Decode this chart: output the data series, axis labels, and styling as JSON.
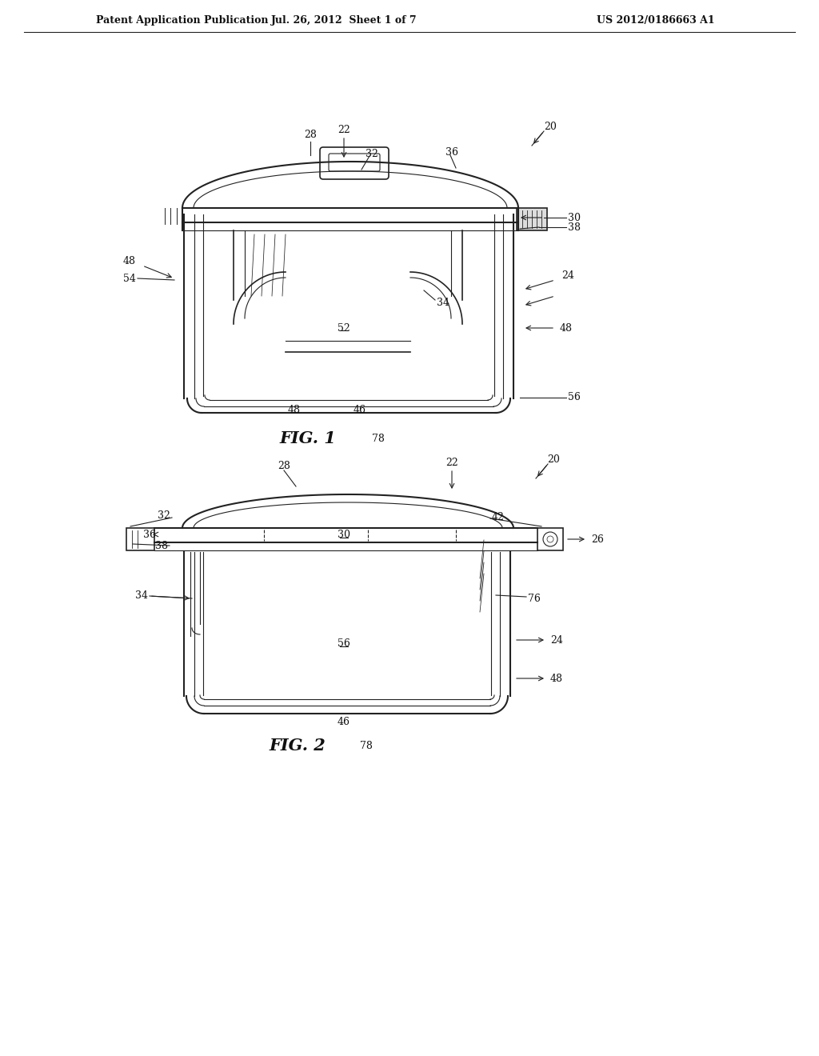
{
  "background_color": "#ffffff",
  "header_text": "Patent Application Publication",
  "header_date": "Jul. 26, 2012  Sheet 1 of 7",
  "header_patent": "US 2012/0186663 A1",
  "fig1_label": "FIG. 1",
  "fig2_label": "FIG. 2",
  "fig1_num": "78",
  "fig2_num": "78",
  "line_color": "#222222",
  "text_color": "#111111"
}
